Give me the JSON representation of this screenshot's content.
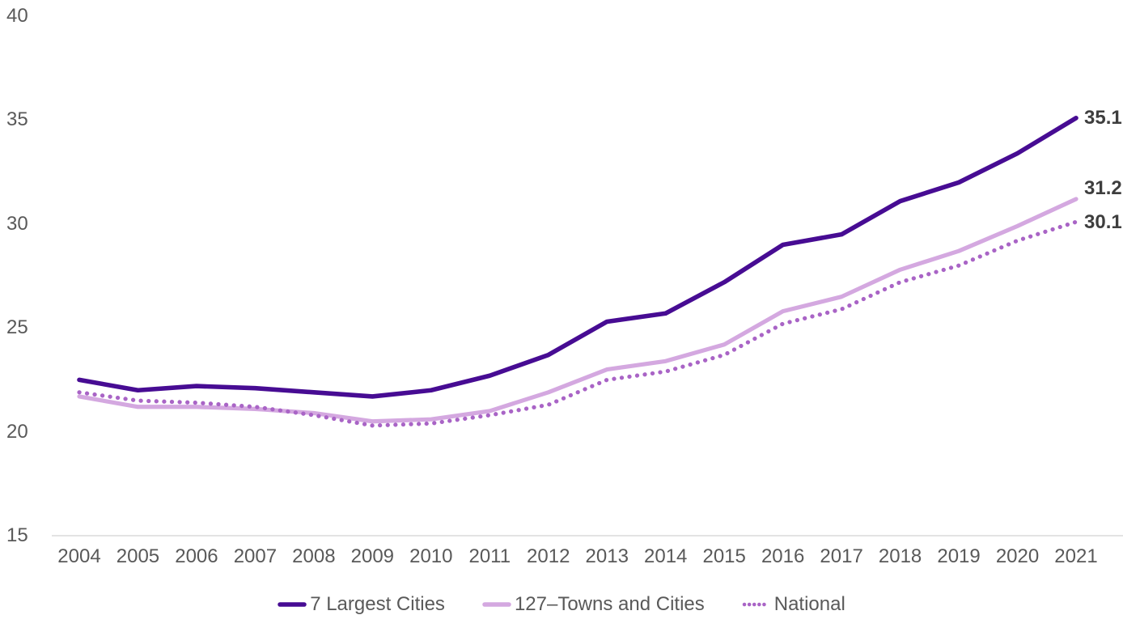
{
  "chart_data": {
    "type": "line",
    "title": "",
    "xlabel": "",
    "ylabel": "",
    "x": [
      2004,
      2005,
      2006,
      2007,
      2008,
      2009,
      2010,
      2011,
      2012,
      2013,
      2014,
      2015,
      2016,
      2017,
      2018,
      2019,
      2020,
      2021
    ],
    "series": [
      {
        "name": "7 Largest Cities",
        "style": "solid",
        "color": "#470C93",
        "stroke_width": 5.6,
        "values": [
          22.5,
          22.0,
          22.2,
          22.1,
          21.9,
          21.7,
          22.0,
          22.7,
          23.7,
          25.3,
          25.7,
          27.2,
          29.0,
          29.5,
          31.1,
          32.0,
          33.4,
          35.1
        ],
        "end_label": "35.1"
      },
      {
        "name": "127–Towns and Cities",
        "style": "solid",
        "color": "#D4A8E0",
        "stroke_width": 5.2,
        "values": [
          21.7,
          21.2,
          21.2,
          21.1,
          20.9,
          20.5,
          20.6,
          21.0,
          21.9,
          23.0,
          23.4,
          24.2,
          25.8,
          26.5,
          27.8,
          28.7,
          29.9,
          31.2
        ],
        "end_label": "31.2"
      },
      {
        "name": "National",
        "style": "dotted",
        "color": "#A964C6",
        "stroke_width": 5.2,
        "values": [
          21.9,
          21.5,
          21.4,
          21.2,
          20.8,
          20.3,
          20.4,
          20.8,
          21.3,
          22.5,
          22.9,
          23.7,
          25.2,
          25.9,
          27.2,
          28.0,
          29.2,
          30.1
        ],
        "end_label": "30.1"
      }
    ],
    "ylim": [
      15,
      40
    ],
    "yticks": [
      "15",
      "20",
      "25",
      "30",
      "35",
      "40"
    ],
    "grid": false,
    "legend_position": "bottom"
  },
  "legend": {
    "items": [
      "7 Largest Cities",
      "127–Towns and Cities",
      "National"
    ]
  },
  "colors": {
    "axis_text": "#595959",
    "end_label_text": "#3E3E3E",
    "baseline": "#DADADA",
    "background": "#FFFFFF"
  }
}
